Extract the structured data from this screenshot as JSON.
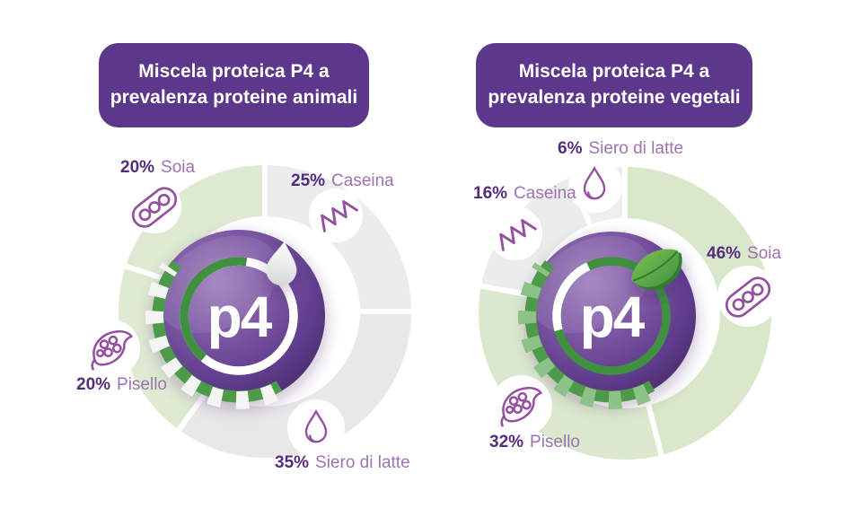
{
  "panels": [
    {
      "title_line1": "Miscela proteica P4 a",
      "title_line2": "prevalenza proteine animali",
      "badge_label": "p4"
    },
    {
      "title_line1": "Miscela proteica P4 a",
      "title_line2": "prevalenza proteine vegetali",
      "badge_label": "p4"
    }
  ],
  "colors": {
    "header_bg": "#5d378c",
    "pct_text": "#542d7d",
    "name_text": "#9d73b1",
    "icon_stroke": "#94519f",
    "segment_gray": "#ececec",
    "segment_green": "#dfead3",
    "ring_green": "#3f9140",
    "ribbon_green_light": "#8cc187",
    "ribbon_green_dark": "#4d9b4a",
    "ribbon_white": "#f4f4f4",
    "sphere_purple_dark": "#44265f",
    "sphere_purple_light": "#9d7fbc"
  },
  "chart_data": [
    {
      "type": "pie",
      "title": "Miscela proteica P4 a prevalenza proteine animali",
      "center_label": "p4",
      "center_icon": "milk-drop-icon",
      "units": "%",
      "rotation": 0,
      "order": "clockwise-from-top",
      "segments": [
        {
          "name": "Caseina",
          "value": 25,
          "pct_label": "25%",
          "color": "#ececec",
          "icon": "casein-squiggle-icon",
          "category": "animale"
        },
        {
          "name": "Siero di latte",
          "value": 35,
          "pct_label": "35%",
          "color": "#e8e8e9",
          "icon": "milk-drop-icon",
          "category": "animale"
        },
        {
          "name": "Pisello",
          "value": 20,
          "pct_label": "20%",
          "color": "#dfead3",
          "icon": "pea-pod-icon",
          "category": "vegetale"
        },
        {
          "name": "Soia",
          "value": 20,
          "pct_label": "20%",
          "color": "#dfead3",
          "icon": "soybean-pod-icon",
          "category": "vegetale"
        }
      ]
    },
    {
      "type": "pie",
      "title": "Miscela proteica P4 a prevalenza proteine vegetali",
      "center_label": "p4",
      "center_icon": "leaf-icon",
      "units": "%",
      "rotation": 0,
      "order": "clockwise-from-top",
      "segments": [
        {
          "name": "Soia",
          "value": 46,
          "pct_label": "46%",
          "color": "#d9e7ca",
          "icon": "soybean-pod-icon",
          "category": "vegetale"
        },
        {
          "name": "Pisello",
          "value": 32,
          "pct_label": "32%",
          "color": "#dce8cd",
          "icon": "pea-pod-icon",
          "category": "vegetale"
        },
        {
          "name": "Caseina",
          "value": 16,
          "pct_label": "16%",
          "color": "#ececec",
          "icon": "casein-squiggle-icon",
          "category": "animale"
        },
        {
          "name": "Siero di latte",
          "value": 6,
          "pct_label": "6%",
          "color": "#efefef",
          "icon": "milk-drop-icon",
          "category": "animale"
        }
      ]
    }
  ]
}
